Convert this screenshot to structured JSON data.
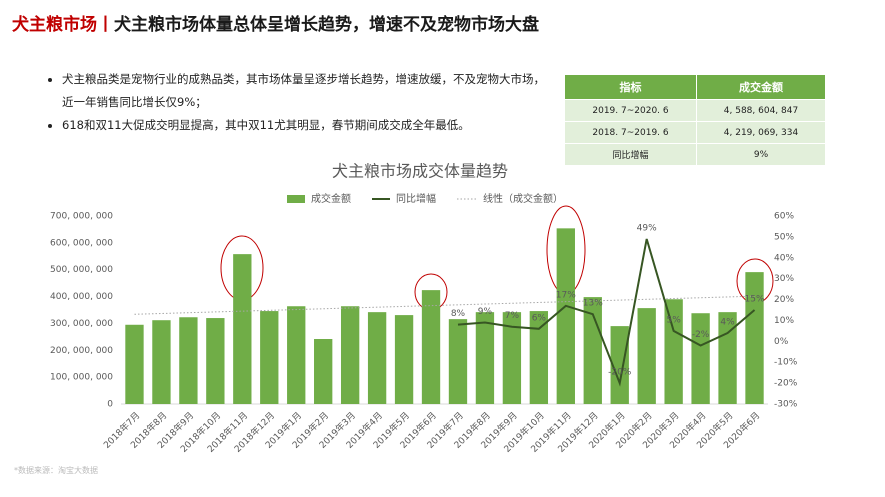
{
  "header": {
    "title_red": "犬主粮市场丨",
    "title": "犬主粮市场体量总体呈增长趋势，增速不及宠物市场大盘"
  },
  "bullets": [
    "犬主粮品类是宠物行业的成熟品类，其市场体量呈逐步增长趋势，增速放缓，不及宠物大市场，近一年销售同比增长仅9%；",
    "618和双11大促成交明显提高，其中双11尤其明显，春节期间成交成全年最低。"
  ],
  "table": {
    "columns": [
      "指标",
      "成交金额"
    ],
    "rows": [
      [
        "2019. 7~2020. 6",
        "4, 588, 604, 847"
      ],
      [
        "2018. 7~2019. 6",
        "4, 219, 069, 334"
      ],
      [
        "同比增幅",
        "9%"
      ]
    ]
  },
  "source": "*数据来源：淘宝大数据",
  "chart_data": {
    "type": "bar_line",
    "title": "犬主粮市场成交体量趋势",
    "categories": [
      "2018年7月",
      "2018年8月",
      "2018年9月",
      "2018年10月",
      "2018年11月",
      "2018年12月",
      "2019年1月",
      "2019年2月",
      "2019年3月",
      "2019年4月",
      "2019年5月",
      "2019年6月",
      "2019年7月",
      "2019年8月",
      "2019年9月",
      "2019年10月",
      "2019年11月",
      "2019年12月",
      "2020年1月",
      "2020年2月",
      "2020年3月",
      "2020年4月",
      "2020年5月",
      "2020年6月"
    ],
    "series": [
      {
        "name": "成交金额",
        "type": "bar",
        "color": "#70ad47",
        "values": [
          295000000,
          312000000,
          323000000,
          320000000,
          558000000,
          346000000,
          364000000,
          242000000,
          364000000,
          342000000,
          331000000,
          424000000,
          316000000,
          342000000,
          342000000,
          346000000,
          654000000,
          398000000,
          290000000,
          357000000,
          390000000,
          338000000,
          342000000,
          491000000
        ]
      },
      {
        "name": "同比增幅",
        "type": "line",
        "axis": "y2",
        "color": "#375623",
        "values": [
          null,
          null,
          null,
          null,
          null,
          null,
          null,
          null,
          null,
          null,
          null,
          null,
          8,
          9,
          7,
          6,
          17,
          13,
          -20,
          49,
          5,
          -2,
          4,
          15
        ],
        "value_labels": [
          null,
          null,
          null,
          null,
          null,
          null,
          null,
          null,
          null,
          null,
          null,
          null,
          "8%",
          "9%",
          "7%",
          "6%",
          "17%",
          "13%",
          "-20%",
          "49%",
          "5%",
          "-2%",
          "4%",
          "15%"
        ]
      }
    ],
    "trendline": {
      "name": "线性（成交金额）",
      "color": "#a6a6a6"
    },
    "ylim": [
      0,
      700000000
    ],
    "yticks": [
      {
        "value": 0,
        "label": "0"
      },
      {
        "value": 100000000,
        "label": "100, 000, 000"
      },
      {
        "value": 200000000,
        "label": "200, 000, 000"
      },
      {
        "value": 300000000,
        "label": "300, 000, 000"
      },
      {
        "value": 400000000,
        "label": "400, 000, 000"
      },
      {
        "value": 500000000,
        "label": "500, 000, 000"
      },
      {
        "value": 600000000,
        "label": "600, 000, 000"
      },
      {
        "value": 700000000,
        "label": "700, 000, 000"
      }
    ],
    "y2lim": [
      -30,
      60
    ],
    "y2ticks": [
      {
        "value": -30,
        "label": "-30%"
      },
      {
        "value": -20,
        "label": "-20%"
      },
      {
        "value": -10,
        "label": "-10%"
      },
      {
        "value": 0,
        "label": "0%"
      },
      {
        "value": 10,
        "label": "10%"
      },
      {
        "value": 20,
        "label": "20%"
      },
      {
        "value": 30,
        "label": "30%"
      },
      {
        "value": 40,
        "label": "40%"
      },
      {
        "value": 50,
        "label": "50%"
      },
      {
        "value": 60,
        "label": "60%"
      }
    ]
  }
}
